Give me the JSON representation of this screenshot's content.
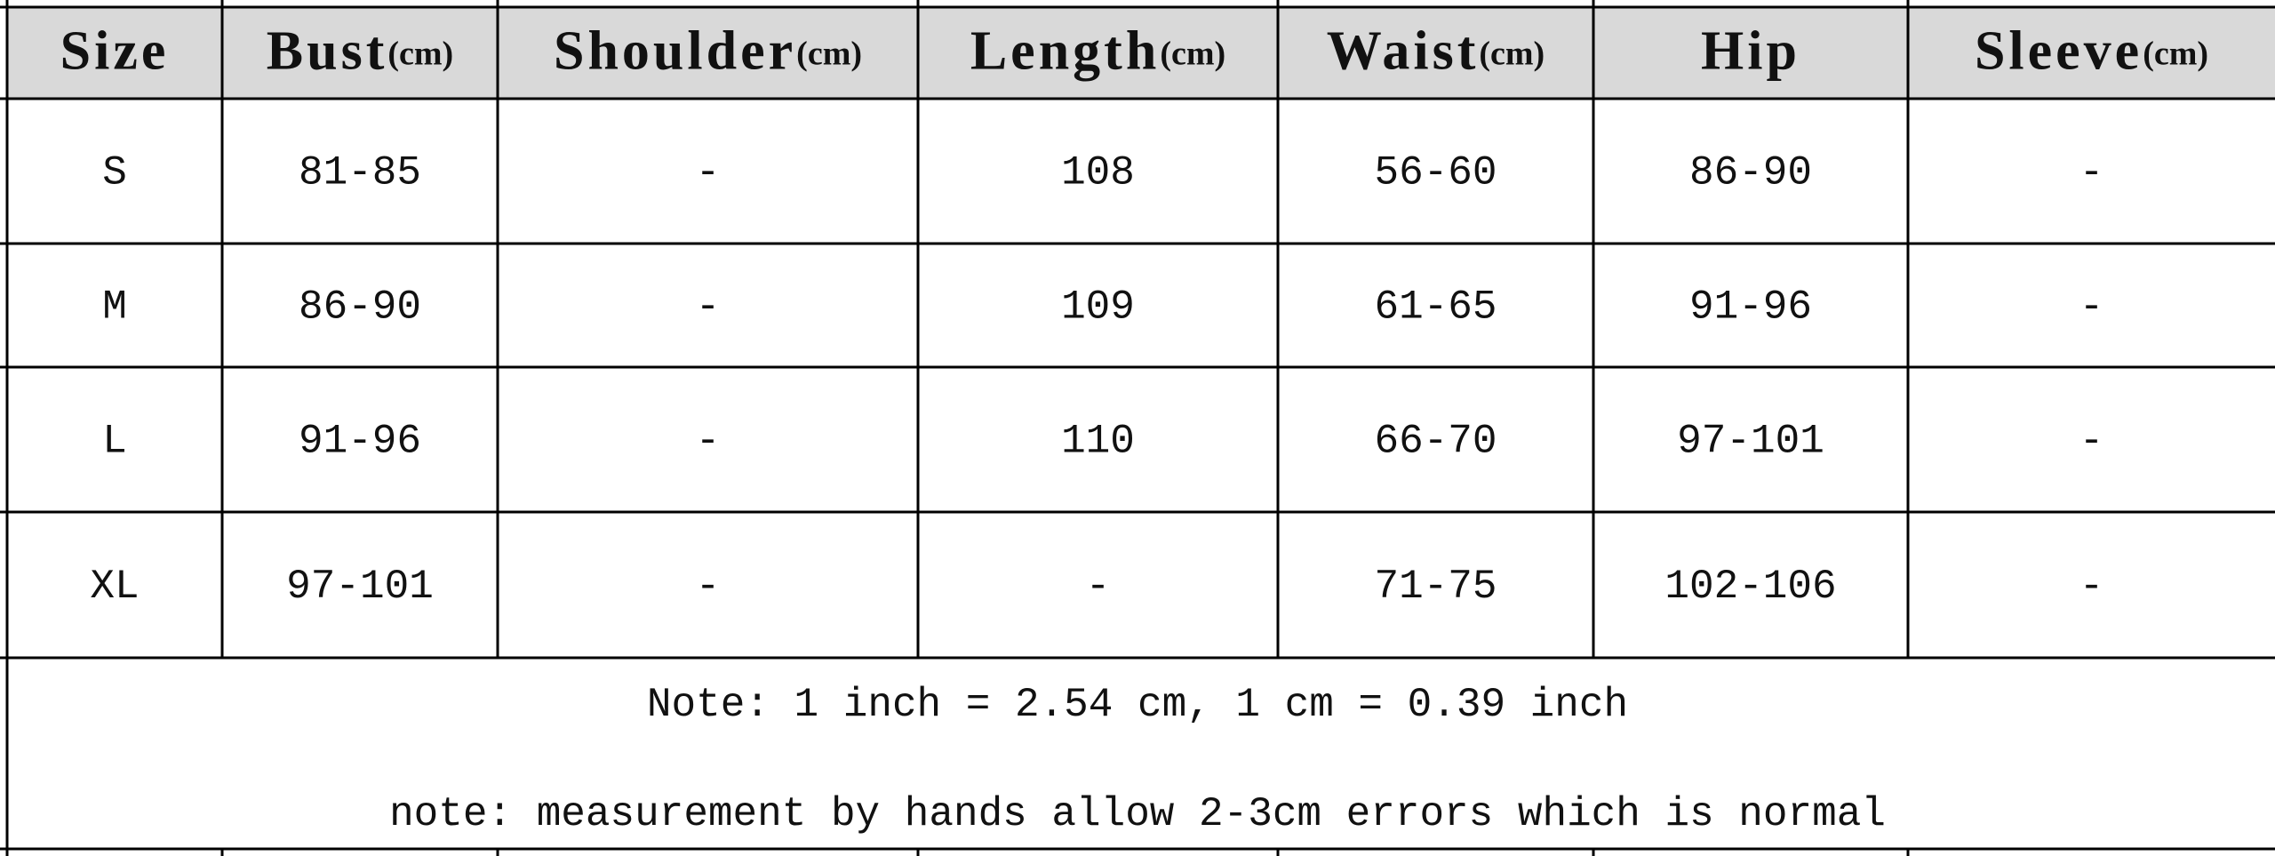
{
  "table": {
    "header": [
      {
        "name": "Size"
      },
      {
        "name": "Bust",
        "unit": "(cm)"
      },
      {
        "name": "Shoulder",
        "unit": "(cm)"
      },
      {
        "name": "Length",
        "unit": "(cm)"
      },
      {
        "name": "Waist",
        "unit": "(cm)"
      },
      {
        "name": "Hip"
      },
      {
        "name": "Sleeve",
        "unit": "(cm)"
      }
    ],
    "rows": [
      [
        "S",
        "81-85",
        "-",
        "108",
        "56-60",
        "86-90",
        "-"
      ],
      [
        "M",
        "86-90",
        "-",
        "109",
        "61-65",
        "91-96",
        "-"
      ],
      [
        "L",
        "91-96",
        "-",
        "110",
        "66-70",
        "97-101",
        "-"
      ],
      [
        "XL",
        "97-101",
        "-",
        "-",
        "71-75",
        "102-106",
        "-"
      ]
    ],
    "notes": [
      "Note: 1 inch = 2.54 cm, 1 cm = 0.39 inch",
      "note: measurement by hands allow 2-3cm errors which is normal"
    ]
  }
}
